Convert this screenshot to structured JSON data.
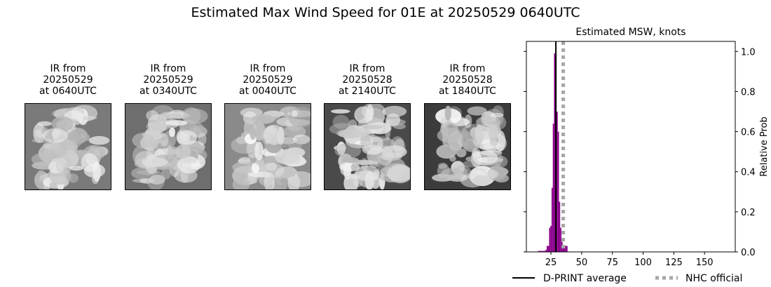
{
  "figure": {
    "title": "Estimated Max Wind Speed for 01E at 20250529 0640UTC"
  },
  "ir_panels": [
    {
      "line1": "IR from",
      "line2": "20250529",
      "line3": "at 0640UTC"
    },
    {
      "line1": "IR from",
      "line2": "20250529",
      "line3": "at 0340UTC"
    },
    {
      "line1": "IR from",
      "line2": "20250529",
      "line3": "at 0040UTC"
    },
    {
      "line1": "IR from",
      "line2": "20250528",
      "line3": "at 2140UTC"
    },
    {
      "line1": "IR from",
      "line2": "20250528",
      "line3": "at 1840UTC"
    }
  ],
  "chart_data": {
    "type": "bar",
    "title": "Estimated MSW, knots",
    "ylabel": "Relative Prob",
    "xlabel": "",
    "xlim": [
      5,
      175
    ],
    "ylim": [
      0,
      1.05
    ],
    "x_ticks": [
      25,
      50,
      75,
      100,
      125,
      150
    ],
    "y_ticks": [
      0.0,
      0.2,
      0.4,
      0.6,
      0.8,
      1.0
    ],
    "y_tick_labels": [
      "0.0",
      "0.2",
      "0.4",
      "0.6",
      "0.8",
      "1.0"
    ],
    "bin_width": 1,
    "bars": [
      {
        "x": 15,
        "y": 0.005
      },
      {
        "x": 16,
        "y": 0.005
      },
      {
        "x": 17,
        "y": 0.005
      },
      {
        "x": 18,
        "y": 0.005
      },
      {
        "x": 19,
        "y": 0.005
      },
      {
        "x": 20,
        "y": 0.005
      },
      {
        "x": 21,
        "y": 0.01
      },
      {
        "x": 22,
        "y": 0.03
      },
      {
        "x": 23,
        "y": 0.03
      },
      {
        "x": 24,
        "y": 0.12
      },
      {
        "x": 25,
        "y": 0.13
      },
      {
        "x": 26,
        "y": 0.32
      },
      {
        "x": 27,
        "y": 0.64
      },
      {
        "x": 28,
        "y": 0.99
      },
      {
        "x": 29,
        "y": 0.72
      },
      {
        "x": 30,
        "y": 0.7
      },
      {
        "x": 31,
        "y": 0.6
      },
      {
        "x": 32,
        "y": 0.25
      },
      {
        "x": 33,
        "y": 0.12
      },
      {
        "x": 34,
        "y": 0.05
      },
      {
        "x": 35,
        "y": 0.03
      },
      {
        "x": 36,
        "y": 0.03
      },
      {
        "x": 37,
        "y": 0.03
      },
      {
        "x": 38,
        "y": 0.03
      }
    ],
    "bar_color": "#8b008b",
    "dprint_average": 29,
    "nhc_official": 35,
    "legend": {
      "dprint_label": "D-PRINT average",
      "nhc_label": "NHC official"
    },
    "line_color": "#000000",
    "nhc_color": "#a6a6a6"
  }
}
